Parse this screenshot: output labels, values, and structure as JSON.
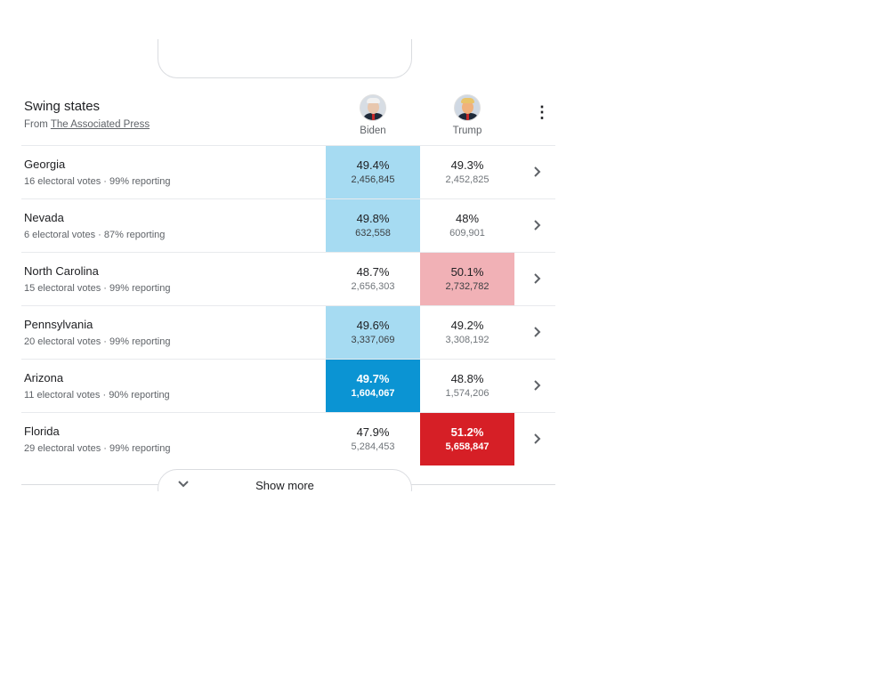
{
  "header": {
    "title": "Swing states",
    "source_prefix": "From",
    "source_link": "The Associated Press",
    "candidates": [
      {
        "name": "Biden",
        "icon": "biden-avatar"
      },
      {
        "name": "Trump",
        "icon": "trump-avatar"
      }
    ],
    "more_icon": "⋮"
  },
  "colors": {
    "biden_light": "#a6dbf2",
    "biden_dark": "#0b94d3",
    "trump_light": "#f1b1b6",
    "trump_dark": "#d61f26"
  },
  "rows": [
    {
      "state": "Georgia",
      "electoral": "16 electoral votes",
      "reporting": "99% reporting",
      "biden": {
        "pct": "49.4%",
        "votes": "2,456,845"
      },
      "trump": {
        "pct": "49.3%",
        "votes": "2,452,825"
      }
    },
    {
      "state": "Nevada",
      "electoral": "6 electoral votes",
      "reporting": "87% reporting",
      "biden": {
        "pct": "49.8%",
        "votes": "632,558"
      },
      "trump": {
        "pct": "48%",
        "votes": "609,901"
      }
    },
    {
      "state": "North Carolina",
      "electoral": "15 electoral votes",
      "reporting": "99% reporting",
      "biden": {
        "pct": "48.7%",
        "votes": "2,656,303"
      },
      "trump": {
        "pct": "50.1%",
        "votes": "2,732,782"
      }
    },
    {
      "state": "Pennsylvania",
      "electoral": "20 electoral votes",
      "reporting": "99% reporting",
      "biden": {
        "pct": "49.6%",
        "votes": "3,337,069"
      },
      "trump": {
        "pct": "49.2%",
        "votes": "3,308,192"
      }
    },
    {
      "state": "Arizona",
      "electoral": "11 electoral votes",
      "reporting": "90% reporting",
      "biden": {
        "pct": "49.7%",
        "votes": "1,604,067"
      },
      "trump": {
        "pct": "48.8%",
        "votes": "1,574,206"
      }
    },
    {
      "state": "Florida",
      "electoral": "29 electoral votes",
      "reporting": "99% reporting",
      "biden": {
        "pct": "47.9%",
        "votes": "5,284,453"
      },
      "trump": {
        "pct": "51.2%",
        "votes": "5,658,847"
      }
    }
  ],
  "show_more": "Show more"
}
